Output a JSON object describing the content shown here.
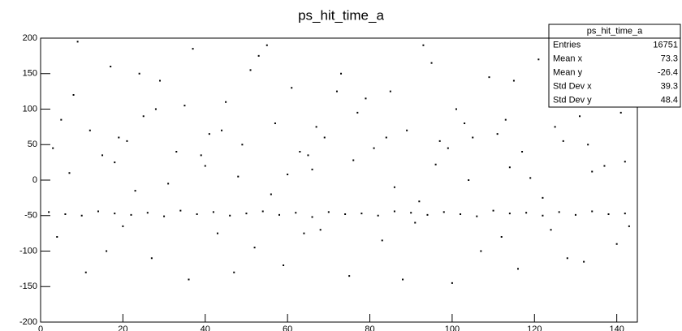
{
  "chart_data": {
    "type": "scatter",
    "title": "ps_hit_time_a",
    "color": "#000000",
    "x": [
      2,
      6,
      10,
      14,
      18,
      22,
      26,
      30,
      34,
      38,
      42,
      46,
      50,
      54,
      58,
      62,
      66,
      70,
      74,
      78,
      82,
      86,
      90,
      94,
      98,
      102,
      106,
      110,
      114,
      118,
      122,
      126,
      130,
      134,
      138,
      142,
      3,
      8,
      12,
      17,
      21,
      25,
      29,
      33,
      37,
      41,
      45,
      49,
      53,
      57,
      61,
      65,
      69,
      73,
      77,
      81,
      85,
      89,
      93,
      97,
      101,
      105,
      109,
      113,
      117,
      121,
      125,
      129,
      133,
      137,
      141,
      144,
      5,
      15,
      24,
      35,
      44,
      55,
      63,
      72,
      84,
      95,
      103,
      115,
      127,
      139,
      9,
      19,
      28,
      39,
      51,
      67,
      79,
      99,
      111,
      131,
      4,
      11,
      20,
      27,
      36,
      43,
      52,
      59,
      68,
      75,
      83,
      91,
      100,
      107,
      116,
      124,
      132,
      140,
      16,
      47,
      64,
      88,
      112,
      128,
      143,
      7,
      18,
      31,
      40,
      48,
      56,
      66,
      76,
      86,
      96,
      104,
      114,
      122,
      134,
      142,
      23,
      60,
      92,
      119,
      137
    ],
    "y": [
      -45,
      -48,
      -50,
      -44,
      -47,
      -49,
      -46,
      -51,
      -43,
      -48,
      -45,
      -50,
      -47,
      -44,
      -49,
      -46,
      -52,
      -45,
      -48,
      -47,
      -50,
      -44,
      -46,
      -49,
      -45,
      -48,
      -51,
      -43,
      -47,
      -46,
      -50,
      -45,
      -49,
      -44,
      -48,
      -47,
      45,
      120,
      70,
      160,
      55,
      90,
      140,
      40,
      185,
      65,
      110,
      50,
      175,
      80,
      130,
      35,
      60,
      150,
      95,
      45,
      125,
      70,
      190,
      55,
      100,
      60,
      145,
      85,
      40,
      170,
      75,
      115,
      50,
      135,
      95,
      180,
      85,
      35,
      150,
      105,
      70,
      190,
      40,
      125,
      60,
      165,
      80,
      140,
      55,
      110,
      195,
      60,
      100,
      35,
      155,
      75,
      115,
      45,
      65,
      90,
      -80,
      -130,
      -65,
      -110,
      -140,
      -75,
      -95,
      -120,
      -70,
      -135,
      -85,
      -60,
      -145,
      -100,
      -125,
      -70,
      -115,
      -90,
      -100,
      -130,
      -75,
      -140,
      -80,
      -110,
      -65,
      10,
      25,
      -5,
      20,
      5,
      -20,
      15,
      28,
      -10,
      22,
      0,
      18,
      -25,
      12,
      26,
      -15,
      8,
      -30,
      3,
      20
    ],
    "xlim": [
      0,
      145
    ],
    "ylim": [
      -200,
      200
    ],
    "xticks": [
      0,
      20,
      40,
      60,
      80,
      100,
      120,
      140
    ],
    "yticks": [
      -200,
      -150,
      -100,
      -50,
      0,
      50,
      100,
      150,
      200
    ],
    "stats": {
      "title": "ps_hit_time_a",
      "rows": [
        {
          "label": "Entries",
          "value": 16751
        },
        {
          "label": "Mean x",
          "value": 73.3
        },
        {
          "label": "Mean y",
          "value": -26.4
        },
        {
          "label": "Std Dev x",
          "value": 39.3
        },
        {
          "label": "Std Dev y",
          "value": 48.4
        }
      ]
    }
  }
}
